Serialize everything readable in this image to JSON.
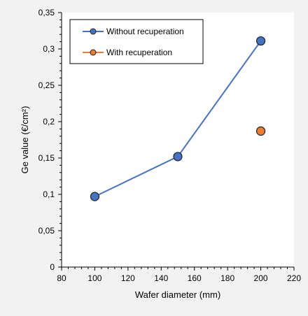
{
  "chart_data": {
    "type": "scatter",
    "xlabel": "Wafer diameter (mm)",
    "ylabel": "Ge value (€/cm²)",
    "xlim": [
      80,
      220
    ],
    "ylim": [
      0,
      0.35
    ],
    "x_ticks": [
      80,
      100,
      120,
      140,
      160,
      180,
      200,
      220
    ],
    "x_tick_labels": [
      "80",
      "100",
      "120",
      "140",
      "160",
      "180",
      "200",
      "220"
    ],
    "y_ticks": [
      0,
      0.05,
      0.1,
      0.15,
      0.2,
      0.25,
      0.3,
      0.35
    ],
    "y_tick_labels": [
      "0",
      "0,05",
      "0,1",
      "0,15",
      "0,2",
      "0,25",
      "0,3",
      "0,35"
    ],
    "grid": false,
    "legend_position": "top-left",
    "series": [
      {
        "name": "Without recuperation",
        "color": "#4472c4",
        "marker_color": "#4472c4",
        "connected": true,
        "x": [
          100,
          150,
          200
        ],
        "y": [
          0.097,
          0.152,
          0.311
        ]
      },
      {
        "name": "With recuperation",
        "color": "#ed7d31",
        "marker_color": "#ed7d31",
        "connected": false,
        "x": [
          200
        ],
        "y": [
          0.187
        ]
      }
    ]
  }
}
